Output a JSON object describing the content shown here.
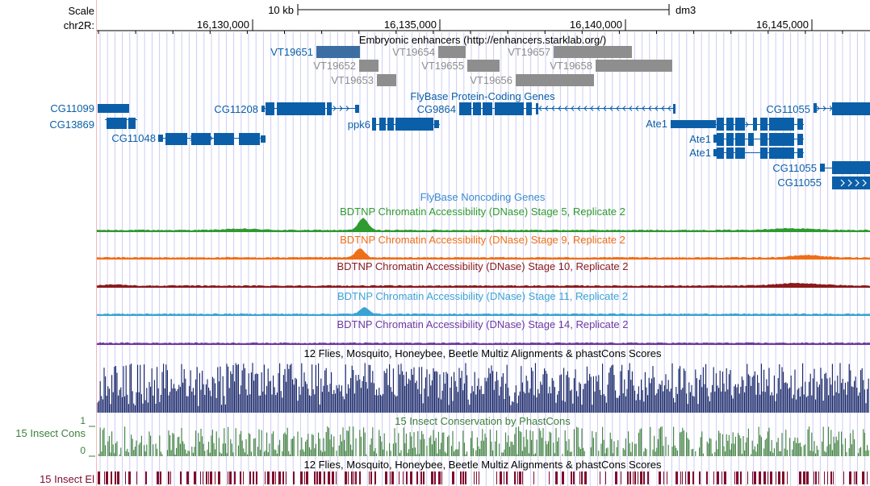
{
  "header": {
    "scale_label": "Scale",
    "chrom_label": "chr2R:",
    "scalebar_label": "10 kb",
    "assembly": "dm3",
    "positions": [
      "16,130,000",
      "16,135,000",
      "16,140,000",
      "16,145,000"
    ]
  },
  "colors": {
    "gene_blue": "#0b5fa8",
    "enhancer_dark": "#3c6ea3",
    "enhancer_gray": "#8e8e8e",
    "stage5": "#2f9a2f",
    "stage9": "#ef6f18",
    "stage10": "#8b1a1a",
    "stage11": "#3aa3d4",
    "stage14": "#6e3aa0",
    "multiz": "#0f1e63",
    "phastcons": "#3d7f3d",
    "elements": "#7f0a2a",
    "grid": "#ccccf4"
  },
  "tracks": {
    "enhancers": {
      "title": "Embryonic enhancers (http://enhancers.starklab.org/)",
      "items": [
        {
          "label": "VT19651",
          "highlight": true
        },
        {
          "label": "VT19652",
          "highlight": false
        },
        {
          "label": "VT19653",
          "highlight": false
        },
        {
          "label": "VT19654",
          "highlight": false
        },
        {
          "label": "VT19655",
          "highlight": false
        },
        {
          "label": "VT19656",
          "highlight": false
        },
        {
          "label": "VT19657",
          "highlight": false
        },
        {
          "label": "VT19658",
          "highlight": false
        }
      ]
    },
    "protein_genes": {
      "title": "FlyBase Protein-Coding Genes",
      "genes": [
        "CG11099",
        "CG13869",
        "CG11048",
        "CG11208",
        "ppk6",
        "CG9864",
        "Ate1",
        "Ate1",
        "Ate1",
        "CG11055",
        "CG11055",
        "CG11055"
      ]
    },
    "noncoding_genes": {
      "title": "FlyBase Noncoding Genes"
    },
    "dnase": [
      {
        "title": "BDTNP Chromatin Accessibility (DNase) Stage 5, Replicate 2"
      },
      {
        "title": "BDTNP Chromatin Accessibility (DNase) Stage 9, Replicate 2"
      },
      {
        "title": "BDTNP Chromatin Accessibility (DNase) Stage 10, Replicate 2"
      },
      {
        "title": "BDTNP Chromatin Accessibility (DNase) Stage 11, Replicate 2"
      },
      {
        "title": "BDTNP Chromatin Accessibility (DNase) Stage 14, Replicate 2"
      }
    ],
    "multiz": {
      "title": "12 Flies, Mosquito, Honeybee, Beetle Multiz Alignments & phastCons Scores"
    },
    "phastcons": {
      "title": "15 Insect Conservation by PhastCons",
      "side_label": "15 Insect Cons",
      "ymax": "1",
      "ymin": "0"
    },
    "elements": {
      "title": "12 Flies, Mosquito, Honeybee, Beetle Multiz Alignments & phastCons Scores",
      "side_label": "15 Insect El"
    }
  }
}
